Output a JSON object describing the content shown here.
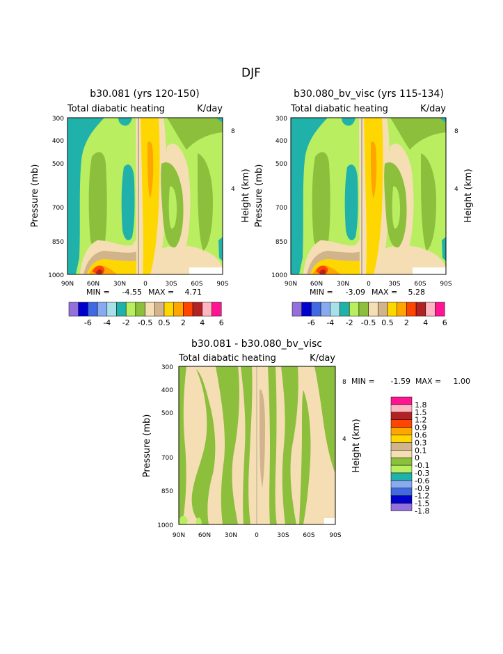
{
  "page_title": "DJF",
  "panels": {
    "p1": {
      "title": "b30.081 (yrs 120-150)",
      "field": "Total diabatic heating",
      "units": "K/day",
      "min_label": "MIN =",
      "min_value": "-4.55",
      "max_label": "MAX =",
      "max_value": "4.71"
    },
    "p2": {
      "title": "b30.080_bv_visc (yrs 115-134)",
      "field": "Total diabatic heating",
      "units": "K/day",
      "min_label": "MIN =",
      "min_value": "-3.09",
      "max_label": "MAX =",
      "max_value": "5.28"
    },
    "p3": {
      "title": "b30.081 - b30.080_bv_visc",
      "field": "Total diabatic heating",
      "units": "K/day",
      "min_label": "MIN =",
      "min_value": "-1.59",
      "max_label": "MAX =",
      "max_value": "1.00"
    }
  },
  "axes": {
    "ylabel": "Pressure (mb)",
    "y2label": "Height (km)",
    "pressure_ticks": [
      "300",
      "400",
      "500",
      "700",
      "850",
      "1000"
    ],
    "height_ticks": [
      "8",
      "4"
    ],
    "lat_ticks": [
      "90N",
      "60N",
      "30N",
      "0",
      "30S",
      "60S",
      "90S"
    ]
  },
  "colorbar_top": {
    "labels": [
      "-6",
      "-4",
      "-2",
      "-0.5",
      "0.5",
      "2",
      "4",
      "6"
    ],
    "colors": [
      "#9370db",
      "#0000cd",
      "#4169e1",
      "#87aaf0",
      "#a8e0e8",
      "#20b2aa",
      "#b8ee60",
      "#8cbf3c",
      "#f5deb3",
      "#d2b48c",
      "#ffd700",
      "#ffa500",
      "#ff4500",
      "#b22222",
      "#ffb6c1",
      "#ff1493"
    ]
  },
  "colorbar_diff": {
    "labels": [
      "1.8",
      "1.5",
      "1.2",
      "0.9",
      "0.6",
      "0.3",
      "0.1",
      "0",
      "-0.1",
      "-0.3",
      "-0.6",
      "-0.9",
      "-1.2",
      "-1.5",
      "-1.8"
    ],
    "colors": [
      "#ff1493",
      "#ffb6c1",
      "#b22222",
      "#ff4500",
      "#ffa500",
      "#ffd700",
      "#d2b48c",
      "#f5deb3",
      "#8cbf3c",
      "#b8ee60",
      "#20b2aa",
      "#87aaf0",
      "#4169e1",
      "#0000cd",
      "#9370db"
    ]
  },
  "chart_data": [
    {
      "type": "heatmap",
      "title": "b30.081 (yrs 120-150)",
      "subtitle": "Total diabatic heating",
      "units": "K/day",
      "xlabel": "",
      "ylabel": "Pressure (mb)",
      "y2label": "Height (km)",
      "x_ticks": [
        "90N",
        "60N",
        "30N",
        "0",
        "30S",
        "60S",
        "90S"
      ],
      "y_ticks": [
        300,
        400,
        500,
        700,
        850,
        1000
      ],
      "min": -4.55,
      "max": 4.71
    },
    {
      "type": "heatmap",
      "title": "b30.080_bv_visc (yrs 115-134)",
      "subtitle": "Total diabatic heating",
      "units": "K/day",
      "xlabel": "",
      "ylabel": "Pressure (mb)",
      "y2label": "Height (km)",
      "x_ticks": [
        "90N",
        "60N",
        "30N",
        "0",
        "30S",
        "60S",
        "90S"
      ],
      "y_ticks": [
        300,
        400,
        500,
        700,
        850,
        1000
      ],
      "min": -3.09,
      "max": 5.28
    },
    {
      "type": "heatmap",
      "title": "b30.081 - b30.080_bv_visc",
      "subtitle": "Total diabatic heating",
      "units": "K/day",
      "xlabel": "",
      "ylabel": "Pressure (mb)",
      "y2label": "Height (km)",
      "x_ticks": [
        "90N",
        "60N",
        "30N",
        "0",
        "30S",
        "60S",
        "90S"
      ],
      "y_ticks": [
        300,
        400,
        500,
        700,
        850,
        1000
      ],
      "min": -1.59,
      "max": 1.0
    }
  ]
}
